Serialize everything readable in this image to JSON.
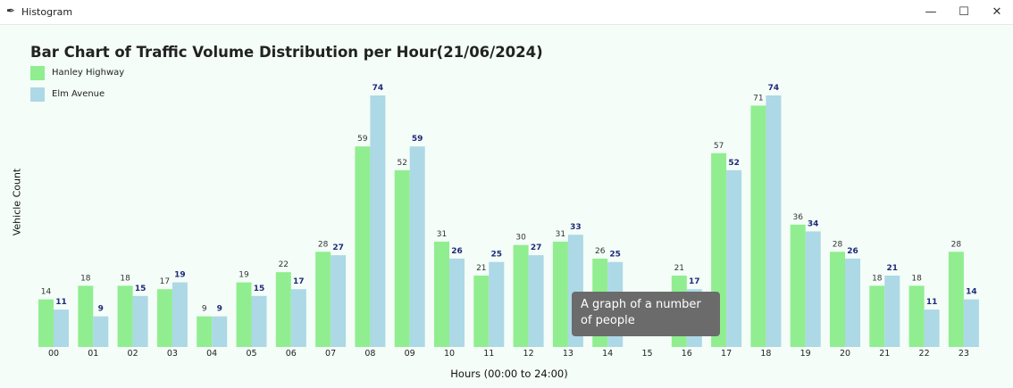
{
  "window": {
    "title": "Histogram",
    "minimize_glyph": "—",
    "maximize_glyph": "☐",
    "close_glyph": "✕",
    "icon": "feather-icon"
  },
  "tooltip": "A graph of a number of people",
  "colors": {
    "series_a": "#90ee90",
    "series_b": "#add8e6",
    "label_a": "#333333",
    "label_b": "#1f2a7a",
    "background": "#f4fdf8"
  },
  "chart_data": {
    "type": "bar",
    "title": "Bar Chart of Traffic Volume Distribution per Hour(21/06/2024)",
    "xlabel": "Hours (00:00 to 24:00)",
    "ylabel": "Vehicle Count",
    "legend_position": "top-left",
    "grid": false,
    "ylim": [
      0,
      74
    ],
    "categories": [
      "00",
      "01",
      "02",
      "03",
      "04",
      "05",
      "06",
      "07",
      "08",
      "09",
      "10",
      "11",
      "12",
      "13",
      "14",
      "15",
      "16",
      "17",
      "18",
      "19",
      "20",
      "21",
      "22",
      "23"
    ],
    "series": [
      {
        "name": "Hanley Highway",
        "values": [
          14,
          18,
          18,
          17,
          9,
          19,
          22,
          28,
          59,
          52,
          31,
          21,
          30,
          31,
          26,
          null,
          21,
          57,
          71,
          36,
          28,
          18,
          18,
          28
        ]
      },
      {
        "name": "Elm Avenue",
        "values": [
          11,
          9,
          15,
          19,
          9,
          15,
          17,
          27,
          74,
          59,
          26,
          25,
          27,
          33,
          25,
          null,
          17,
          52,
          74,
          34,
          26,
          21,
          11,
          14
        ]
      }
    ]
  }
}
